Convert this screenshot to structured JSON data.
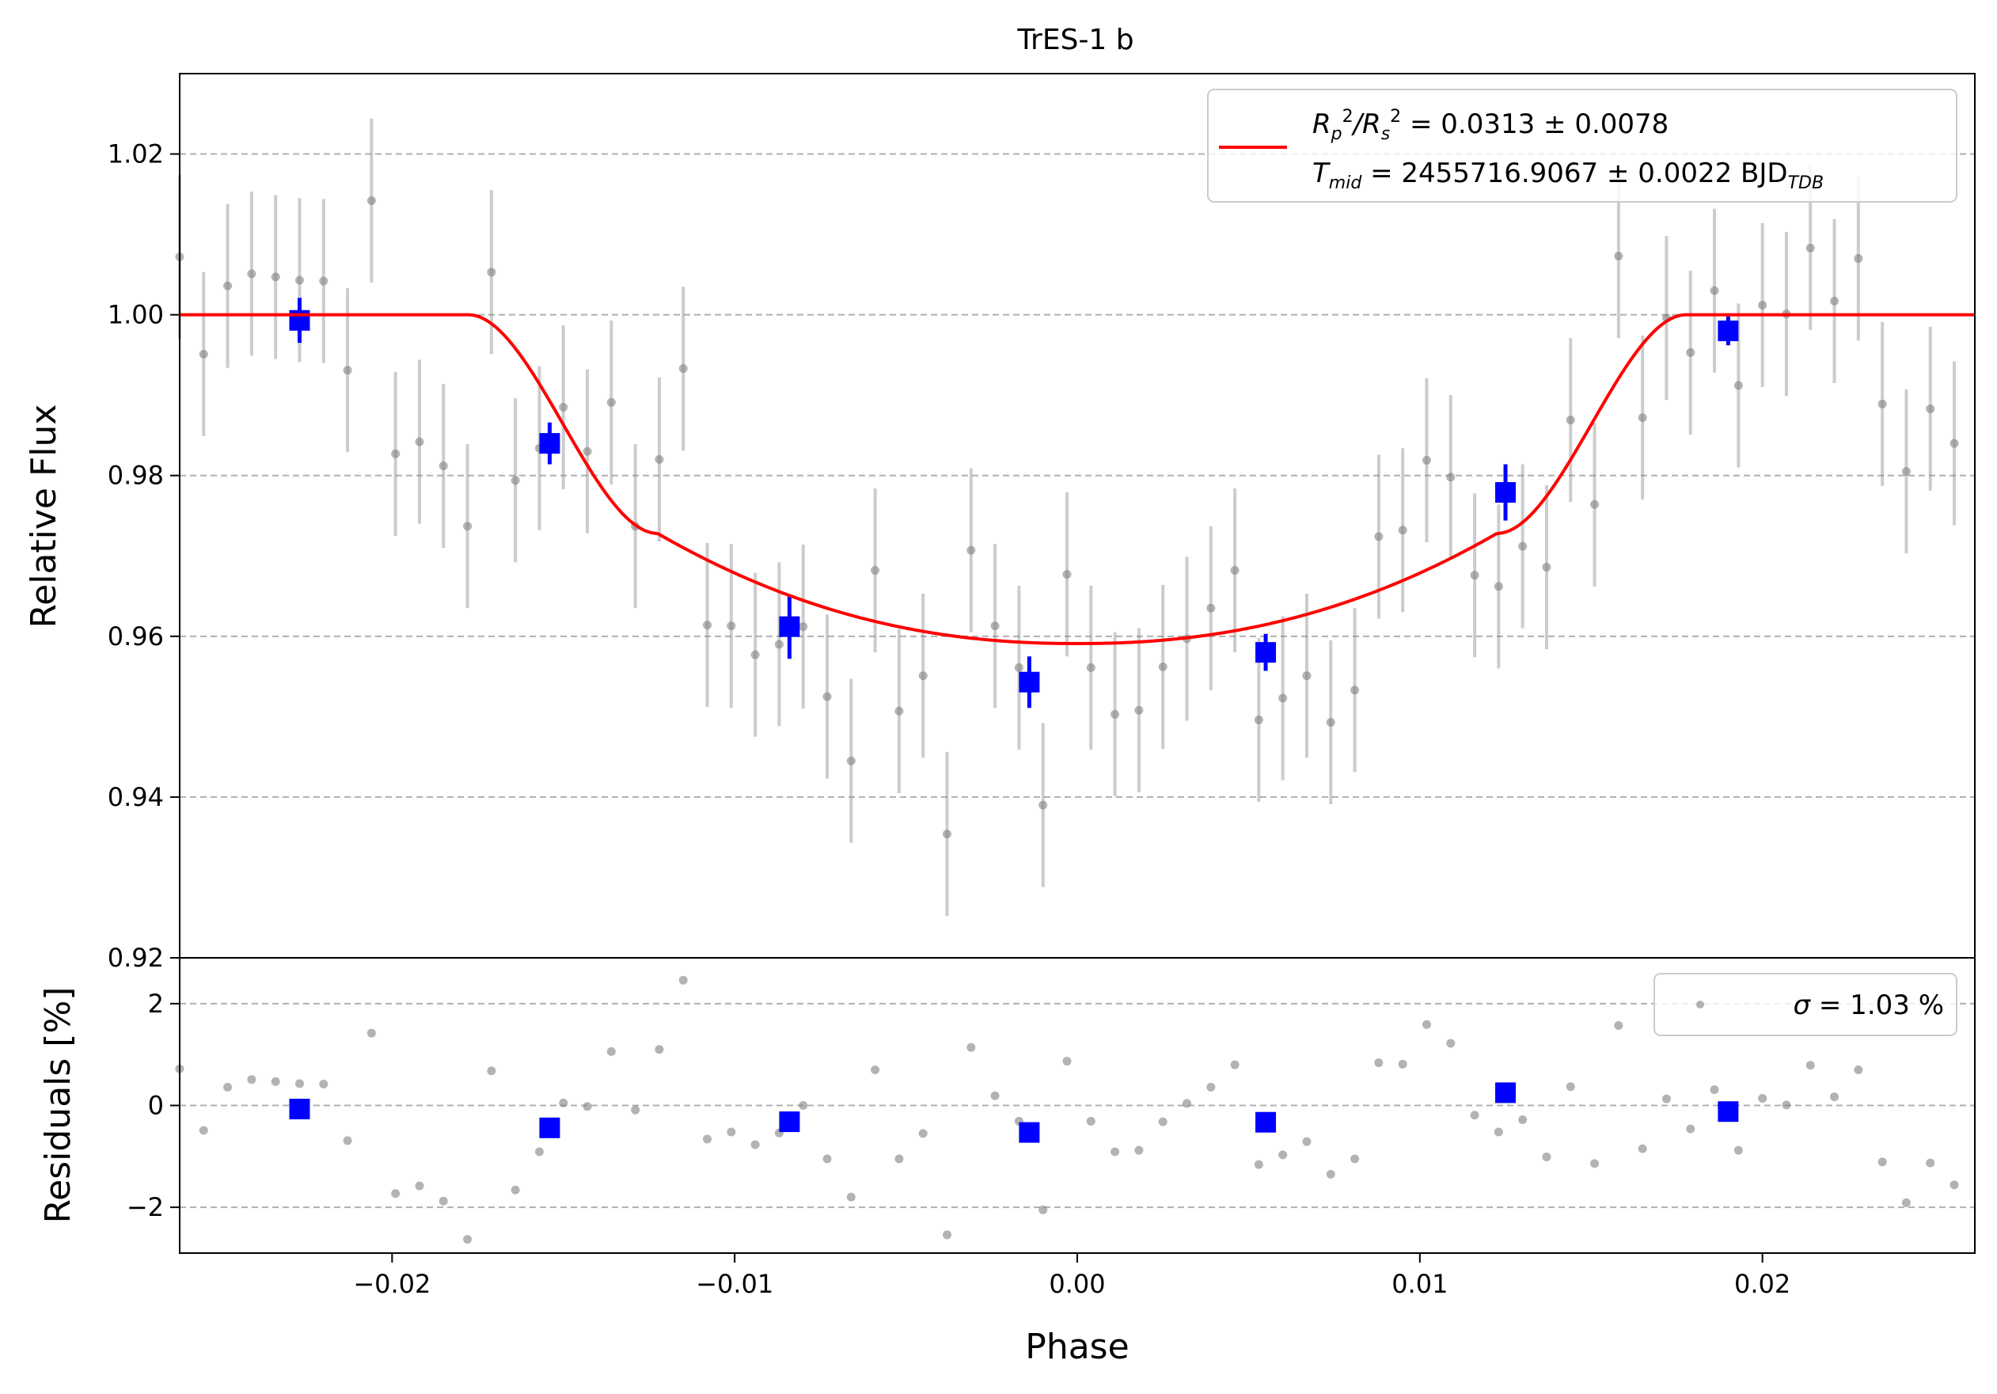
{
  "chart_data": [
    {
      "type": "scatter",
      "panel": "flux",
      "title": "TrES-1 b",
      "xlabel": "",
      "ylabel": "Relative Flux",
      "xlim": [
        -0.0262,
        0.0262
      ],
      "ylim": [
        0.92,
        1.03
      ],
      "grid": "horizontal-dashed",
      "y_ticks": [
        "0.92",
        "0.94",
        "0.96",
        "0.98",
        "1.00",
        "1.02"
      ],
      "legend": {
        "placement": "top-right",
        "line1_parts": [
          "R",
          "p",
          "2",
          "/R",
          "s",
          "2",
          " = 0.0313 ± 0.0078"
        ],
        "line2_parts": [
          "T",
          "mid",
          " = 2455716.9067 ± 0.0022 BJD",
          "TDB"
        ]
      },
      "series": [
        {
          "kind": "points",
          "color": "#808080",
          "x": [
            -0.0262,
            -0.0255,
            -0.0248,
            -0.0241,
            -0.0234,
            -0.0227,
            -0.022,
            -0.0213,
            -0.0206,
            -0.0199,
            -0.0192,
            -0.0185,
            -0.0178,
            -0.0171,
            -0.0164,
            -0.0157,
            -0.015,
            -0.0143,
            -0.0136,
            -0.0129,
            -0.0122,
            -0.0115,
            -0.0108,
            -0.0101,
            -0.0094,
            -0.0087,
            -0.008,
            -0.0073,
            -0.0066,
            -0.0059,
            -0.0052,
            -0.0045,
            -0.0038,
            -0.0031,
            -0.0024,
            -0.0017,
            -0.001,
            -0.0003,
            0.0004,
            0.0011,
            0.0018,
            0.0025,
            0.0032,
            0.0039,
            0.0046,
            0.0053,
            0.006,
            0.0067,
            0.0074,
            0.0081,
            0.0088,
            0.0095,
            0.0102,
            0.0109,
            0.0116,
            0.0123,
            0.013,
            0.0137,
            0.0144,
            0.0151,
            0.0158,
            0.0165,
            0.0172,
            0.0179,
            0.0186,
            0.0193,
            0.02,
            0.0207,
            0.0214,
            0.0221,
            0.0228,
            0.0235,
            0.0242,
            0.0249,
            0.0256
          ],
          "y": [
            1.0072,
            0.9951,
            1.0036,
            1.0051,
            1.0047,
            1.0043,
            1.0042,
            0.9931,
            1.0142,
            0.9827,
            0.9842,
            0.9812,
            0.9737,
            1.0053,
            0.9794,
            0.9834,
            0.9885,
            0.983,
            0.9891,
            0.9737,
            0.982,
            0.9933,
            0.9614,
            0.9613,
            0.9577,
            0.959,
            0.9612,
            0.9525,
            0.9445,
            0.9682,
            0.9507,
            0.9551,
            0.9354,
            0.9707,
            0.9613,
            0.9561,
            0.939,
            0.9677,
            0.9561,
            0.9503,
            0.9508,
            0.9562,
            0.9597,
            0.9635,
            0.9682,
            0.9496,
            0.9523,
            0.9551,
            0.9493,
            0.9533,
            0.9724,
            0.9732,
            0.9819,
            0.9798,
            0.9676,
            0.9662,
            0.9712,
            0.9686,
            0.9869,
            0.9764,
            1.0073,
            0.9872,
            0.9996,
            0.9953,
            1.003,
            0.9912,
            1.0012,
            1.0001,
            1.0083,
            1.0017,
            1.007,
            0.9889,
            0.9805,
            0.9883,
            0.984
          ],
          "yerr": 0.0102
        },
        {
          "kind": "binned",
          "color": "#0000ff",
          "x": [
            -0.0227,
            -0.0154,
            -0.0084,
            -0.0014,
            0.0055,
            0.0125,
            0.019
          ],
          "y": [
            0.9993,
            0.984,
            0.9612,
            0.9543,
            0.958,
            0.9779,
            0.998
          ],
          "yerr": [
            0.0028,
            0.0026,
            0.004,
            0.0032,
            0.0023,
            0.0035,
            0.0018
          ]
        },
        {
          "kind": "model",
          "color": "#ff0000",
          "depth": 0.0409,
          "t_contact_outer": 0.01777,
          "t_contact_inner": 0.01225,
          "ingress_break_flux": 0.9728
        }
      ]
    },
    {
      "type": "scatter",
      "panel": "residuals",
      "xlabel": "Phase",
      "ylabel": "Residuals [%]",
      "xlim": [
        -0.0262,
        0.0262
      ],
      "ylim": [
        -2.9,
        2.9
      ],
      "grid": "horizontal-dashed",
      "x_ticks": [
        "−0.02",
        "−0.01",
        "0.00",
        "0.01",
        "0.02"
      ],
      "x_tick_values": [
        -0.02,
        -0.01,
        0.0,
        0.01,
        0.02
      ],
      "y_ticks": [
        "−2",
        "0",
        "2"
      ],
      "y_tick_values": [
        -2,
        0,
        2
      ],
      "legend": {
        "placement": "top-right",
        "label_parts": [
          "σ",
          " = 1.03 %"
        ]
      },
      "series": [
        {
          "kind": "points",
          "color": "#808080",
          "y": [
            0.72,
            -0.49,
            0.36,
            0.51,
            0.47,
            0.43,
            0.42,
            -0.69,
            1.42,
            -1.73,
            -1.58,
            -1.88,
            -2.63,
            0.68,
            -1.66,
            -0.91,
            0.05,
            -0.02,
            1.06,
            -0.09,
            1.1,
            2.46,
            -0.66,
            -0.52,
            -0.77,
            -0.54,
            0.0,
            -1.05,
            -1.8,
            0.7,
            -1.05,
            -0.55,
            -2.54,
            1.14,
            0.19,
            -0.31,
            -2.05,
            0.87,
            -0.31,
            -0.91,
            -0.88,
            -0.32,
            0.04,
            0.36,
            0.8,
            -1.16,
            -0.97,
            -0.71,
            -1.35,
            -1.05,
            0.84,
            0.81,
            1.59,
            1.22,
            -0.19,
            -0.52,
            -0.28,
            -1.01,
            0.37,
            -1.14,
            1.57,
            -0.85,
            0.13,
            -0.46,
            0.31,
            -0.88,
            0.14,
            0.01,
            0.79,
            0.17,
            0.7,
            -1.11,
            -1.91,
            -1.13,
            -1.56
          ]
        },
        {
          "kind": "binned",
          "color": "#0000ff",
          "y": [
            -0.07,
            -0.44,
            -0.32,
            -0.53,
            -0.33,
            0.25,
            -0.12
          ]
        }
      ]
    }
  ]
}
